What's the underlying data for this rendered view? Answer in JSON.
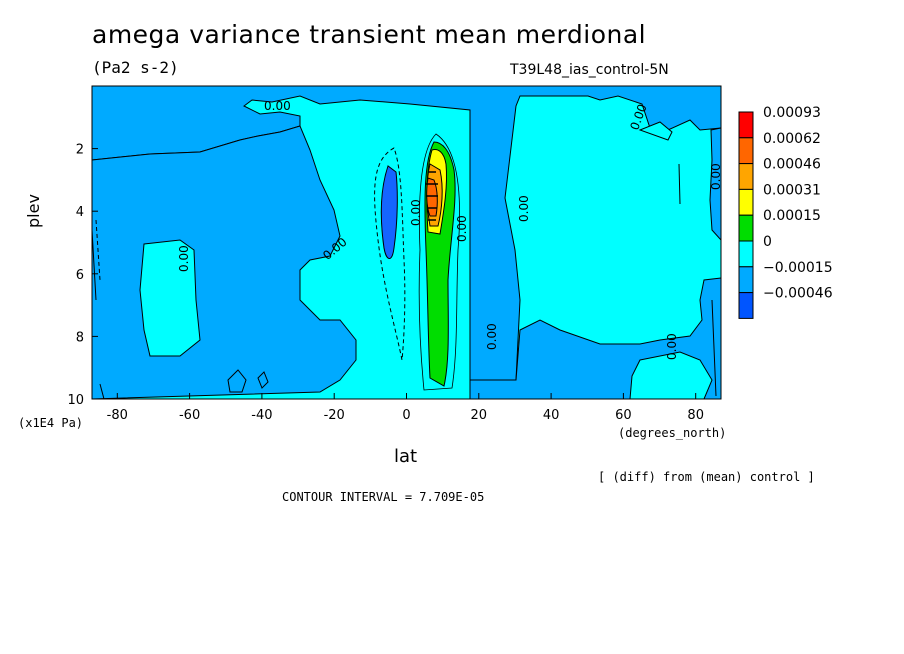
{
  "header": {
    "title": "amega variance transient mean merdional",
    "units": "(Pa2 s-2)",
    "run": "T39L48_ias_control-5N"
  },
  "axes": {
    "ylabel": "plev",
    "xlabel": "lat",
    "yunits": "(x1E4 Pa)",
    "xunits": "(degrees_north)"
  },
  "footer": {
    "diff_note": "[ (diff) from (mean) control ]",
    "contour_interval": "CONTOUR INTERVAL = 7.709E-05"
  },
  "chart_data": {
    "type": "contour",
    "x_ticks": [
      -80,
      -60,
      -40,
      -20,
      0,
      20,
      40,
      60,
      80
    ],
    "y_ticks": [
      2,
      4,
      6,
      8,
      10
    ],
    "x_range": [
      -87,
      87
    ],
    "y_range": [
      0,
      10
    ],
    "y_inverted": true,
    "legend_levels": [
      {
        "label": "0.00093",
        "color": "#ff0000"
      },
      {
        "label": "0.00062",
        "color": "#ff6600"
      },
      {
        "label": "0.00046",
        "color": "#ffa500"
      },
      {
        "label": "0.00031",
        "color": "#ffff00"
      },
      {
        "label": "0.00015",
        "color": "#00dd00"
      },
      {
        "label": "0",
        "color": "#00ffff"
      },
      {
        "label": "−0.00015",
        "color": "#00aaff"
      },
      {
        "label": "−0.00046",
        "color": "#0055ff"
      }
    ],
    "contour_labels": [
      "0.00",
      "0.00",
      "0.00",
      "0.00",
      "0.00",
      "0.00",
      "0.00",
      "0.00",
      "0.00",
      "0.00"
    ]
  },
  "colors": {
    "positive_background": "#00ffff",
    "negative_region": "#00aaff",
    "strong_negative": "#0055ff"
  }
}
